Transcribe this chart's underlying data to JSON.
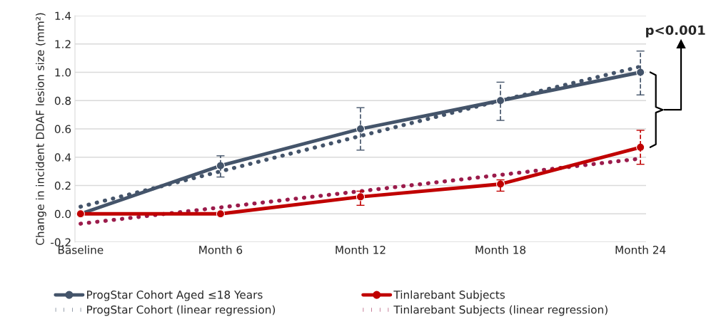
{
  "chart_data": {
    "type": "line",
    "ylabel": "Change in incident DDAF lesion size (mm²)",
    "categories": [
      "Baseline",
      "Month 6",
      "Month 12",
      "Month 18",
      "Month 24"
    ],
    "series": [
      {
        "name": "ProgStar Cohort Aged ≤18 Years",
        "color": "#44546a",
        "values": [
          0,
          0.34,
          0.6,
          0.8,
          1.0
        ],
        "errors": [
          null,
          [
            0.26,
            0.41
          ],
          [
            0.45,
            0.75
          ],
          [
            0.66,
            0.93
          ],
          [
            0.84,
            1.15
          ]
        ],
        "marker": "circle",
        "line_style": "solid"
      },
      {
        "name": "Tinlarebant Subjects",
        "color": "#c00000",
        "values": [
          0,
          0.0,
          0.12,
          0.21,
          0.47
        ],
        "errors": [
          null,
          null,
          [
            0.06,
            0.16
          ],
          [
            0.16,
            0.24
          ],
          [
            0.35,
            0.59
          ]
        ],
        "marker": "circle",
        "line_style": "solid"
      },
      {
        "name": "ProgStar Cohort (linear regression)",
        "color": "#44546a",
        "values": [
          0.05,
          0.3,
          0.55,
          0.8,
          1.04
        ],
        "marker": "none",
        "line_style": "dotted"
      },
      {
        "name": "Tinlarebant Subjects (linear regression)",
        "color": "#9b1b4b",
        "values": [
          -0.07,
          0.045,
          0.16,
          0.275,
          0.39
        ],
        "marker": "none",
        "line_style": "dotted"
      }
    ],
    "ylim": [
      -0.2,
      1.4
    ],
    "yticks": [
      {
        "value": -0.2,
        "label": "-0.2"
      },
      {
        "value": 0,
        "label": "0.0"
      },
      {
        "value": 0.2,
        "label": "0.2"
      },
      {
        "value": 0.4,
        "label": "0.4"
      },
      {
        "value": 0.6,
        "label": "0.6"
      },
      {
        "value": 0.8,
        "label": "0.8"
      },
      {
        "value": 1.0,
        "label": "1.0"
      },
      {
        "value": 1.2,
        "label": "1.2"
      },
      {
        "value": 1.4,
        "label": "1.4"
      }
    ],
    "grid": "y",
    "legend": "bottom",
    "annotations": [
      "p<0.001"
    ]
  }
}
